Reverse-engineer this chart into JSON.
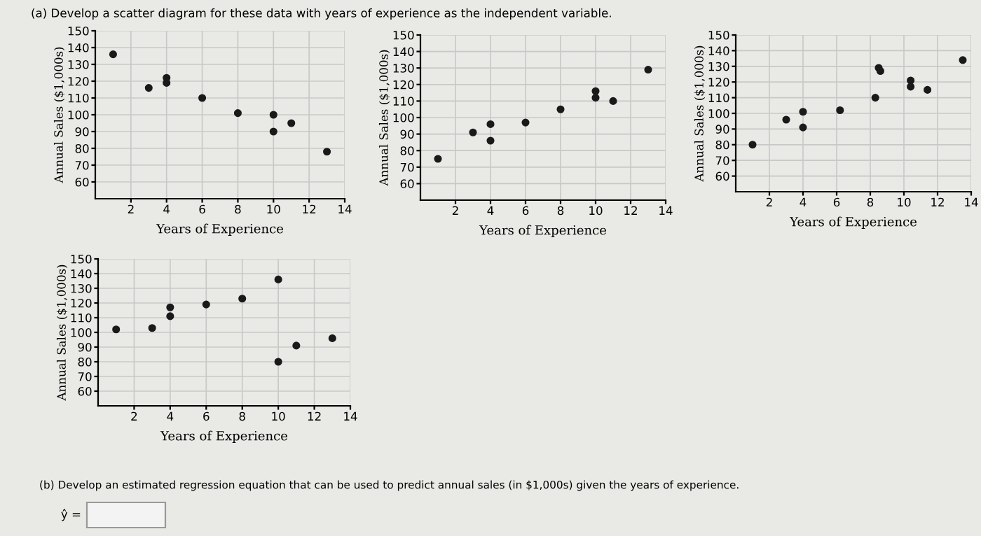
{
  "chart_data": [
    {
      "type": "scatter",
      "annotations": [
        "(a) Develop a scatter diagram for these data with years of experience as the independent variable."
      ],
      "xlabel": "Years of Experience",
      "ylabel": "Annual Sales ($1,000s)",
      "x": [
        1,
        3,
        4,
        4,
        6,
        8,
        10,
        10,
        11,
        13
      ],
      "values": [
        136,
        116,
        122,
        119,
        110,
        101,
        100,
        90,
        95,
        78
      ],
      "color": "#1a1a1a",
      "marker": "circle",
      "xlim": [
        0,
        14
      ],
      "ylim": [
        50,
        150
      ],
      "xticks": [
        2,
        4,
        6,
        8,
        10,
        12,
        14
      ],
      "yticks": [
        60,
        70,
        80,
        90,
        100,
        110,
        120,
        130,
        140,
        150
      ],
      "grid": true
    },
    {
      "type": "scatter",
      "xlabel": "Years of Experience",
      "ylabel": "Annual Sales ($1,000s)",
      "x": [
        1,
        3,
        4,
        4,
        6,
        8,
        10,
        10,
        11,
        13
      ],
      "values": [
        75,
        91,
        96,
        86,
        97,
        105,
        116,
        112,
        110,
        129
      ],
      "color": "#1a1a1a",
      "marker": "circle",
      "xlim": [
        0,
        14
      ],
      "ylim": [
        50,
        150
      ],
      "xticks": [
        2,
        4,
        6,
        8,
        10,
        12,
        14
      ],
      "yticks": [
        60,
        70,
        80,
        90,
        100,
        110,
        120,
        130,
        140,
        150
      ],
      "grid": true
    },
    {
      "type": "scatter",
      "xlabel": "Years of Experience",
      "ylabel": "Annual Sales ($1,000s)",
      "x": [
        1,
        3,
        4,
        4,
        6.2,
        8.3,
        8.5,
        8.6,
        10.4,
        10.4,
        11.4,
        13.5
      ],
      "values": [
        80,
        96,
        101,
        91,
        102,
        110,
        129,
        127,
        121,
        117,
        115,
        134
      ],
      "color": "#1a1a1a",
      "marker": "circle",
      "xlim": [
        0,
        14
      ],
      "ylim": [
        50,
        150
      ],
      "xticks": [
        2,
        4,
        6,
        8,
        10,
        12,
        14
      ],
      "yticks": [
        60,
        70,
        80,
        90,
        100,
        110,
        120,
        130,
        140,
        150
      ],
      "grid": true
    },
    {
      "type": "scatter",
      "annotations": [
        "(b) Develop an estimated regression equation that can be used to predict annual sales (in $1,000s) given the years of experience.",
        "ŷ ="
      ],
      "xlabel": "Years of Experience",
      "ylabel": "Annual Sales ($1,000s)",
      "x": [
        1,
        3,
        4,
        4,
        6,
        8,
        10,
        10,
        11,
        13
      ],
      "values": [
        102,
        103,
        117,
        111,
        119,
        123,
        136,
        80,
        91,
        96
      ],
      "color": "#1a1a1a",
      "marker": "circle",
      "xlim": [
        0,
        14
      ],
      "ylim": [
        50,
        150
      ],
      "xticks": [
        2,
        4,
        6,
        8,
        10,
        12,
        14
      ],
      "yticks": [
        60,
        70,
        80,
        90,
        100,
        110,
        120,
        130,
        140,
        150
      ],
      "grid": true
    }
  ]
}
